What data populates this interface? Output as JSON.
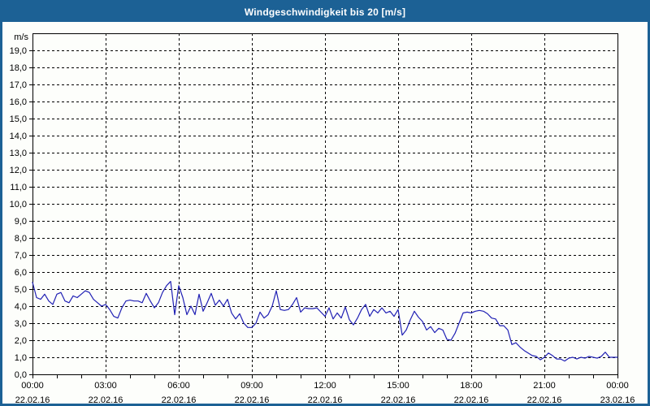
{
  "window": {
    "title": "Windgeschwindigkeit bis 20 [m/s]"
  },
  "colors": {
    "frame_and_titlebar": "#1c6195",
    "title_text": "#ffffff",
    "background": "#fdfefb",
    "axis_and_grid": "#000000",
    "series_line": "#2020b4"
  },
  "chart_data": {
    "type": "line",
    "title": "Windgeschwindigkeit bis 20 [m/s]",
    "ylabel": "m/s",
    "ylim": [
      0,
      20
    ],
    "y_tick_step": 1,
    "y_tick_labels": [
      "0,0",
      "1,0",
      "2,0",
      "3,0",
      "4,0",
      "5,0",
      "6,0",
      "7,0",
      "8,0",
      "9,0",
      "10,0",
      "11,0",
      "12,0",
      "13,0",
      "14,0",
      "15,0",
      "16,0",
      "17,0",
      "18,0",
      "19,0"
    ],
    "grid": "dashed",
    "legend_position": "none",
    "x_axis": {
      "span_hours": 24,
      "major_tick_hours": 3,
      "minor_tick_hours": 1,
      "ticks": [
        {
          "time": "00:00",
          "date": "22.02.16"
        },
        {
          "time": "03:00",
          "date": "22.02.16"
        },
        {
          "time": "06:00",
          "date": "22.02.16"
        },
        {
          "time": "09:00",
          "date": "22.02.16"
        },
        {
          "time": "12:00",
          "date": "22.02.16"
        },
        {
          "time": "15:00",
          "date": "22.02.16"
        },
        {
          "time": "18:00",
          "date": "22.02.16"
        },
        {
          "time": "21:00",
          "date": "22.02.16"
        },
        {
          "time": "00:00",
          "date": "23.02.16"
        }
      ]
    },
    "series": [
      {
        "name": "Windgeschwindigkeit",
        "unit": "m/s",
        "color": "#2020b4",
        "interval_minutes": 10,
        "start": "22.02.16 00:00",
        "values": [
          5.4,
          4.5,
          4.4,
          4.7,
          4.3,
          4.1,
          4.7,
          4.8,
          4.3,
          4.2,
          4.6,
          4.5,
          4.7,
          4.9,
          4.8,
          4.4,
          4.2,
          4.0,
          4.1,
          3.8,
          3.4,
          3.3,
          3.9,
          4.3,
          4.35,
          4.3,
          4.3,
          4.2,
          4.75,
          4.3,
          3.9,
          4.2,
          4.8,
          5.2,
          5.45,
          3.5,
          5.2,
          4.5,
          3.5,
          4.0,
          3.5,
          4.7,
          3.7,
          4.2,
          4.75,
          4.05,
          4.35,
          4.0,
          4.4,
          3.6,
          3.25,
          3.55,
          3.0,
          2.75,
          2.75,
          3.0,
          3.65,
          3.3,
          3.5,
          4.0,
          4.9,
          3.8,
          3.75,
          3.8,
          4.1,
          4.5,
          3.65,
          3.9,
          3.85,
          3.85,
          3.9,
          3.65,
          3.4,
          3.9,
          3.25,
          3.6,
          3.3,
          3.95,
          3.2,
          2.9,
          3.3,
          3.8,
          4.1,
          3.4,
          3.8,
          3.6,
          3.9,
          3.6,
          3.7,
          3.4,
          3.8,
          2.3,
          2.6,
          3.2,
          3.7,
          3.35,
          3.1,
          2.6,
          2.8,
          2.45,
          2.7,
          2.6,
          2.05,
          2.0,
          2.4,
          3.0,
          3.6,
          3.65,
          3.6,
          3.7,
          3.75,
          3.7,
          3.55,
          3.3,
          3.25,
          2.85,
          2.85,
          2.6,
          1.75,
          1.85,
          1.6,
          1.4,
          1.25,
          1.1,
          1.05,
          0.85,
          1.0,
          1.25,
          1.1,
          0.9,
          0.9,
          0.78,
          0.95,
          1.0,
          0.9,
          1.0,
          0.95,
          1.05,
          1.0,
          0.95,
          1.05,
          1.3,
          1.0,
          1.0,
          1.0
        ]
      }
    ]
  }
}
